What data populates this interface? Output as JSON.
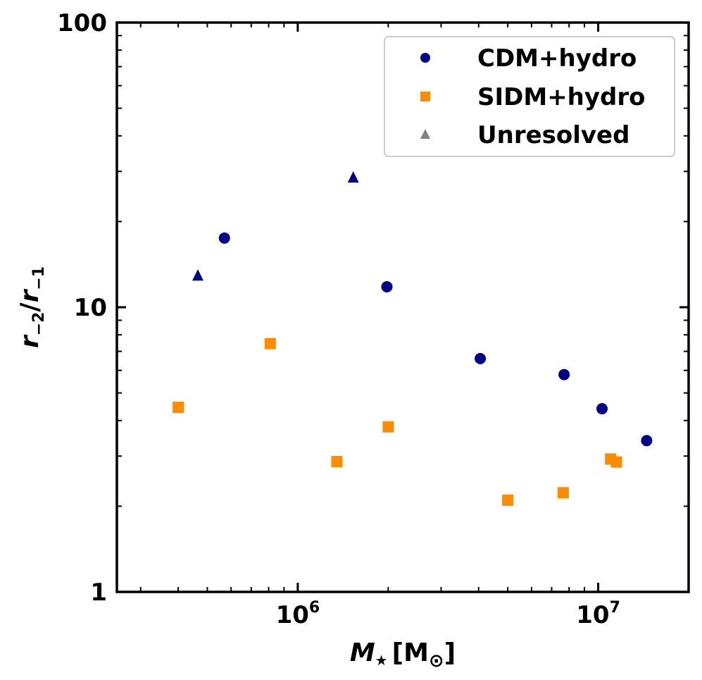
{
  "chart_data": {
    "type": "scatter",
    "title": "",
    "xlabel": "M",
    "xlabel_sub": "★",
    "xlabel_unit_open": "[M",
    "xlabel_unit_sub": "⊙",
    "xlabel_unit_close": "]",
    "ylabel_r1": "r",
    "ylabel_r1_sub": "−2",
    "ylabel_slash": "/",
    "ylabel_r2": "r",
    "ylabel_r2_sub": "−1",
    "xscale": "log",
    "yscale": "log",
    "xlim": [
      250000,
      20000000
    ],
    "ylim": [
      1,
      100
    ],
    "x_ticks": [
      {
        "value": 1000000,
        "base": "10",
        "exp": "6"
      },
      {
        "value": 10000000,
        "base": "10",
        "exp": "7"
      }
    ],
    "y_ticks": [
      {
        "value": 1,
        "label": "1"
      },
      {
        "value": 10,
        "label": "10"
      },
      {
        "value": 100,
        "label": "100"
      }
    ],
    "legend_position": "upper-right",
    "series": [
      {
        "name": "CDM+hydro",
        "marker": "circle",
        "color": "#00008B",
        "points": [
          {
            "x": 570000,
            "y": 17.5
          },
          {
            "x": 1980000,
            "y": 11.8
          },
          {
            "x": 4050000,
            "y": 6.6
          },
          {
            "x": 7700000,
            "y": 5.8
          },
          {
            "x": 10300000,
            "y": 4.4
          },
          {
            "x": 14500000,
            "y": 3.4
          }
        ]
      },
      {
        "name": "SIDM+hydro",
        "marker": "square",
        "color": "#FF8C00",
        "points": [
          {
            "x": 400000,
            "y": 4.45
          },
          {
            "x": 810000,
            "y": 7.45
          },
          {
            "x": 1350000,
            "y": 2.87
          },
          {
            "x": 2000000,
            "y": 3.8
          },
          {
            "x": 5000000,
            "y": 2.1
          },
          {
            "x": 7650000,
            "y": 2.23
          },
          {
            "x": 11000000,
            "y": 2.93
          },
          {
            "x": 11500000,
            "y": 2.86
          }
        ]
      },
      {
        "name": "Unresolved",
        "marker": "triangle",
        "color": "#00008B",
        "legend_color": "#808080",
        "points": [
          {
            "x": 465000,
            "y": 12.9
          },
          {
            "x": 1530000,
            "y": 28.5
          }
        ]
      }
    ]
  }
}
